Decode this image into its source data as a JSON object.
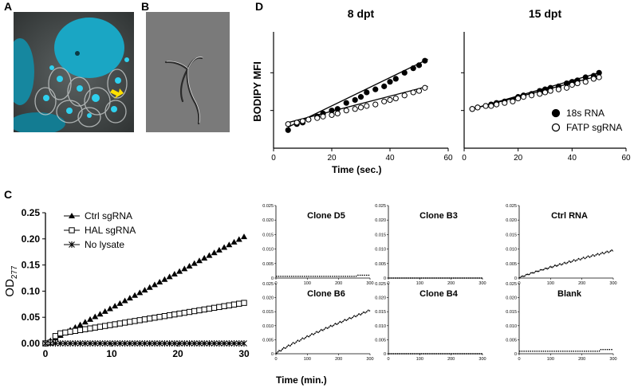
{
  "panels": {
    "a": {
      "letter": "A"
    },
    "b": {
      "letter": "B"
    },
    "c": {
      "letter": "C"
    },
    "d": {
      "letter": "D"
    }
  },
  "shared_x_label": "Time (min.)",
  "colors": {
    "cell_bg": "#3d4242",
    "nucleus": "#1aa6c4",
    "arrow": "#ffe000",
    "panel_b_bg": "#7a7a7a"
  },
  "chart_data": [
    {
      "id": "d-8dpt",
      "type": "scatter",
      "title": "8 dpt",
      "ylabel": "BODIPY MFI",
      "xlabel": "Time (sec.)",
      "xlim": [
        0,
        60
      ],
      "x_ticks": [
        "0",
        "20",
        "40",
        "60"
      ],
      "y_unlabeled": true,
      "series": [
        {
          "name": "18s RNA",
          "marker": "filled",
          "x": [
            5,
            8,
            10,
            12,
            15,
            17,
            20,
            22,
            25,
            28,
            30,
            32,
            35,
            38,
            40,
            42,
            45,
            48,
            50,
            52
          ],
          "y": [
            0.12,
            0.16,
            0.17,
            0.19,
            0.21,
            0.23,
            0.25,
            0.26,
            0.3,
            0.32,
            0.34,
            0.37,
            0.39,
            0.41,
            0.44,
            0.46,
            0.5,
            0.53,
            0.55,
            0.58
          ],
          "fit": [
            [
              5,
              0.14
            ],
            [
              53,
              0.59
            ]
          ]
        },
        {
          "name": "FATP sgRNA",
          "marker": "open",
          "x": [
            5,
            8,
            10,
            12,
            15,
            17,
            20,
            22,
            25,
            28,
            30,
            32,
            35,
            38,
            40,
            42,
            45,
            48,
            50,
            52
          ],
          "y": [
            0.16,
            0.17,
            0.18,
            0.19,
            0.2,
            0.21,
            0.22,
            0.23,
            0.25,
            0.26,
            0.27,
            0.28,
            0.29,
            0.31,
            0.32,
            0.33,
            0.35,
            0.37,
            0.38,
            0.4
          ],
          "fit": [
            [
              5,
              0.17
            ],
            [
              53,
              0.41
            ]
          ]
        }
      ]
    },
    {
      "id": "d-15dpt",
      "type": "scatter",
      "title": "15 dpt",
      "xlabel": "Time (sec.)",
      "xlim": [
        0,
        60
      ],
      "x_ticks": [
        "0",
        "20",
        "40",
        "60"
      ],
      "legend_position": "bottom-right",
      "series": [
        {
          "name": "18s RNA",
          "marker": "filled",
          "x": [
            3,
            5,
            8,
            10,
            12,
            15,
            18,
            20,
            22,
            25,
            28,
            30,
            32,
            35,
            38,
            40,
            42,
            45,
            48,
            50
          ],
          "y": [
            0.26,
            0.27,
            0.28,
            0.29,
            0.3,
            0.31,
            0.32,
            0.34,
            0.35,
            0.36,
            0.38,
            0.39,
            0.4,
            0.41,
            0.43,
            0.44,
            0.45,
            0.47,
            0.48,
            0.5
          ],
          "fit": [
            [
              3,
              0.26
            ],
            [
              50,
              0.5
            ]
          ]
        },
        {
          "name": "FATP sgRNA",
          "marker": "open",
          "x": [
            3,
            5,
            8,
            10,
            12,
            15,
            18,
            20,
            22,
            25,
            28,
            30,
            32,
            35,
            38,
            40,
            42,
            45,
            48,
            50
          ],
          "y": [
            0.26,
            0.27,
            0.28,
            0.28,
            0.29,
            0.3,
            0.31,
            0.33,
            0.34,
            0.35,
            0.36,
            0.37,
            0.38,
            0.39,
            0.4,
            0.42,
            0.43,
            0.44,
            0.46,
            0.47
          ],
          "fit": [
            [
              3,
              0.26
            ],
            [
              50,
              0.48
            ]
          ]
        }
      ]
    },
    {
      "id": "c-main",
      "type": "scatter",
      "ylabel": "OD",
      "ylabel_sub": "277",
      "xlim": [
        0,
        30
      ],
      "ylim": [
        0,
        0.25
      ],
      "x_ticks": [
        "0",
        "10",
        "20",
        "30"
      ],
      "y_ticks": [
        "0.00",
        "0.05",
        "0.10",
        "0.15",
        "0.20",
        "0.25"
      ],
      "legend_position": "top-left",
      "series": [
        {
          "name": "Ctrl sgRNA",
          "marker": "triangle",
          "slope": 0.0068,
          "intercept": 0.0
        },
        {
          "name": "HAL sgRNA",
          "marker": "square",
          "slope": 0.0021,
          "intercept": 0.0145
        },
        {
          "name": "No lysate",
          "marker": "star",
          "slope": 0.0,
          "intercept": 0.0
        }
      ],
      "x_step": 0.75
    },
    {
      "id": "c-small",
      "type": "line",
      "xlim": [
        0,
        300
      ],
      "ylim": [
        0,
        0.025
      ],
      "x_ticks": [
        "0",
        "100",
        "200",
        "300"
      ],
      "y_ticks": [
        "0",
        "0.005",
        "0.010",
        "0.015",
        "0.020",
        "0.025"
      ],
      "plots": [
        {
          "title": "Clone D5",
          "rises": false,
          "end_value": 0.001
        },
        {
          "title": "Clone B3",
          "rises": false,
          "end_value": 0.0
        },
        {
          "title": "Ctrl RNA",
          "rises": true,
          "end_value": 0.0095
        },
        {
          "title": "Clone B6",
          "rises": true,
          "end_value": 0.0155
        },
        {
          "title": "Clone B4",
          "rises": false,
          "end_value": 0.0
        },
        {
          "title": "Blank",
          "rises": false,
          "end_value": 0.0015
        }
      ]
    }
  ]
}
